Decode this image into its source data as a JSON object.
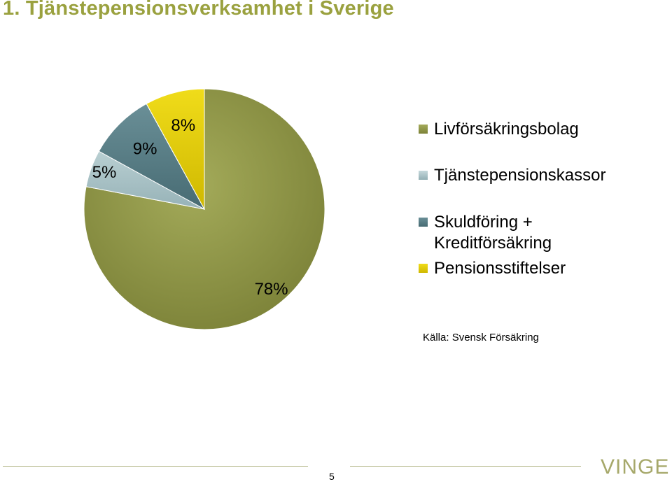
{
  "slide": {
    "title": "1. Tjänstepensionsverksamhet i Sverige",
    "source": "Källa: Svensk Försäkring",
    "page_number": "5",
    "logo": "VINGE"
  },
  "colors": {
    "title": "#9aa13f",
    "livforsakringsbolag": "#8f9747",
    "tjanstepensionskassor": "#a9c2c6",
    "skuldforing": "#587e86",
    "pensionsstiftelser": "#e5d000"
  },
  "chart_data": {
    "type": "pie",
    "title": "",
    "legend_position": "right",
    "slices": [
      {
        "label": "Livförsäkringsbolag",
        "value": 78,
        "display": "78%"
      },
      {
        "label": "Tjänstepensionskassor",
        "value": 5,
        "display": "5%"
      },
      {
        "label": "Skuldföring + Kreditförsäkring",
        "value": 9,
        "display": "9%"
      },
      {
        "label": "Pensionsstiftelser",
        "value": 8,
        "display": "8%"
      }
    ],
    "legend": [
      {
        "label": "Livförsäkringsbolag"
      },
      {
        "label": "Tjänstepensionskassor"
      },
      {
        "label": "Skuldföring + Kreditförsäkring"
      },
      {
        "label": "Pensionsstiftelser"
      }
    ]
  }
}
